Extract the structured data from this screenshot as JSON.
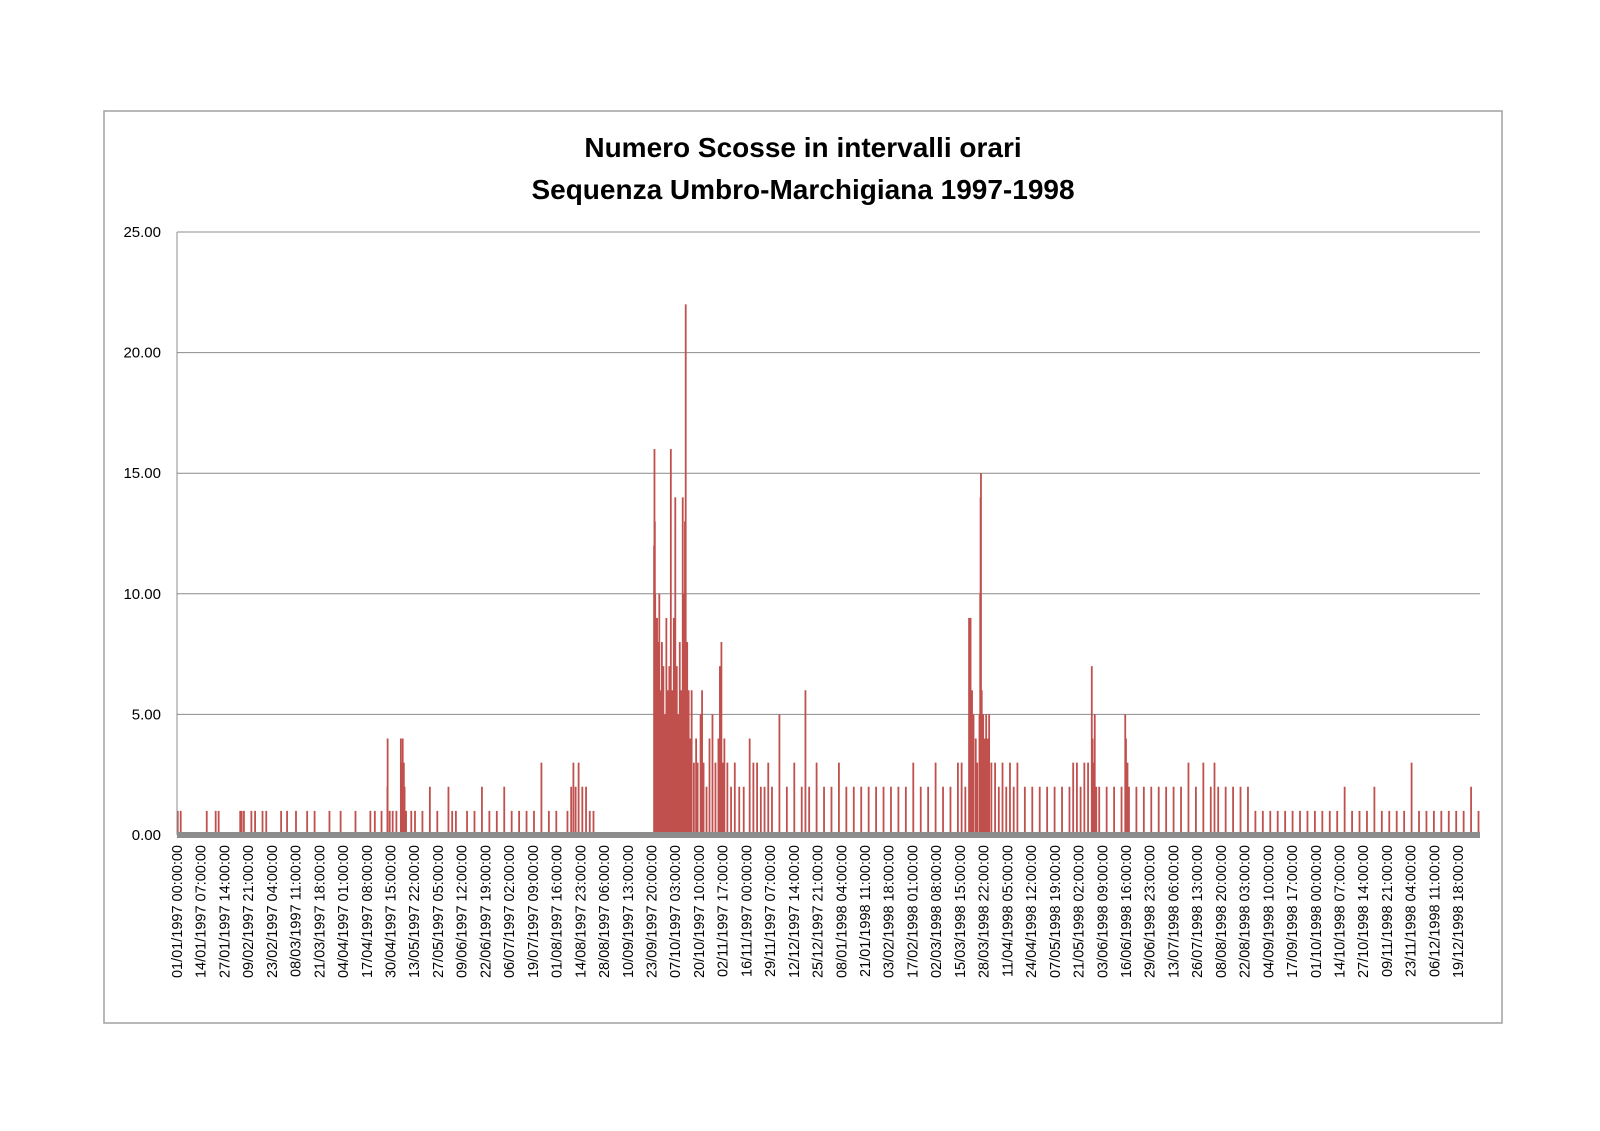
{
  "chart_data": {
    "type": "bar",
    "title": "Numero Scosse in intervalli orari",
    "subtitle": "Sequenza Umbro-Marchigiana 1997-1998",
    "xlabel": "",
    "ylabel": "",
    "ylim": [
      0,
      25
    ],
    "y_ticks": [
      "0.00",
      "5.00",
      "10.00",
      "15.00",
      "20.00",
      "25.00"
    ],
    "x_range": [
      "01/01/1997 00:00:00",
      "31/12/1998 23:00:00"
    ],
    "grid": true,
    "legend": "none",
    "bar_color": "#c0504d",
    "gridline_color": "#8c8c8c",
    "frame_color": "#a0a0a0",
    "x_ticks": [
      "01/01/1997 00:00:00",
      "14/01/1997 07:00:00",
      "27/01/1997 14:00:00",
      "09/02/1997 21:00:00",
      "23/02/1997 04:00:00",
      "08/03/1997 11:00:00",
      "21/03/1997 18:00:00",
      "04/04/1997 01:00:00",
      "17/04/1997 08:00:00",
      "30/04/1997 15:00:00",
      "13/05/1997 22:00:00",
      "27/05/1997 05:00:00",
      "09/06/1997 12:00:00",
      "22/06/1997 19:00:00",
      "06/07/1997 02:00:00",
      "19/07/1997 09:00:00",
      "01/08/1997 16:00:00",
      "14/08/1997 23:00:00",
      "28/08/1997 06:00:00",
      "10/09/1997 13:00:00",
      "23/09/1997 20:00:00",
      "07/10/1997 03:00:00",
      "20/10/1997 10:00:00",
      "02/11/1997 17:00:00",
      "16/11/1997 00:00:00",
      "29/11/1997 07:00:00",
      "12/12/1997 14:00:00",
      "25/12/1997 21:00:00",
      "08/01/1998 04:00:00",
      "21/01/1998 11:00:00",
      "03/02/1998 18:00:00",
      "17/02/1998 01:00:00",
      "02/03/1998 08:00:00",
      "15/03/1998 15:00:00",
      "28/03/1998 22:00:00",
      "11/04/1998 05:00:00",
      "24/04/1998 12:00:00",
      "07/05/1998 19:00:00",
      "21/05/1998 02:00:00",
      "03/06/1998 09:00:00",
      "16/06/1998 16:00:00",
      "29/06/1998 23:00:00",
      "13/07/1998 06:00:00",
      "26/07/1998 13:00:00",
      "08/08/1998 20:00:00",
      "22/08/1998 03:00:00",
      "04/09/1998 10:00:00",
      "17/09/1998 17:00:00",
      "01/10/1998 00:00:00",
      "14/10/1998 07:00:00",
      "27/10/1998 14:00:00",
      "09/11/1998 21:00:00",
      "23/11/1998 04:00:00",
      "06/12/1998 11:00:00",
      "19/12/1998 18:00:00"
    ],
    "x_tick_step_hours": 319,
    "total_hours": 17520,
    "series": [
      {
        "points": [
          {
            "h": 10,
            "v": 1
          },
          {
            "h": 50,
            "v": 1
          },
          {
            "h": 400,
            "v": 1
          },
          {
            "h": 520,
            "v": 1
          },
          {
            "h": 560,
            "v": 1
          },
          {
            "h": 850,
            "v": 1
          },
          {
            "h": 870,
            "v": 1
          },
          {
            "h": 900,
            "v": 1
          },
          {
            "h": 1000,
            "v": 1
          },
          {
            "h": 1050,
            "v": 1
          },
          {
            "h": 1150,
            "v": 1
          },
          {
            "h": 1200,
            "v": 1
          },
          {
            "h": 1400,
            "v": 1
          },
          {
            "h": 1480,
            "v": 1
          },
          {
            "h": 1600,
            "v": 1
          },
          {
            "h": 1750,
            "v": 1
          },
          {
            "h": 1850,
            "v": 1
          },
          {
            "h": 2050,
            "v": 1
          },
          {
            "h": 2200,
            "v": 1
          },
          {
            "h": 2400,
            "v": 1
          },
          {
            "h": 2600,
            "v": 1
          },
          {
            "h": 2660,
            "v": 1
          },
          {
            "h": 2750,
            "v": 1
          },
          {
            "h": 2830,
            "v": 2
          },
          {
            "h": 2832,
            "v": 4
          },
          {
            "h": 2860,
            "v": 1
          },
          {
            "h": 2900,
            "v": 1
          },
          {
            "h": 2950,
            "v": 1
          },
          {
            "h": 3010,
            "v": 4
          },
          {
            "h": 3020,
            "v": 3
          },
          {
            "h": 3035,
            "v": 4
          },
          {
            "h": 3050,
            "v": 3
          },
          {
            "h": 3060,
            "v": 2
          },
          {
            "h": 3080,
            "v": 1
          },
          {
            "h": 3150,
            "v": 1
          },
          {
            "h": 3200,
            "v": 1
          },
          {
            "h": 3300,
            "v": 1
          },
          {
            "h": 3400,
            "v": 2
          },
          {
            "h": 3500,
            "v": 1
          },
          {
            "h": 3650,
            "v": 2
          },
          {
            "h": 3700,
            "v": 1
          },
          {
            "h": 3750,
            "v": 1
          },
          {
            "h": 3900,
            "v": 1
          },
          {
            "h": 4000,
            "v": 1
          },
          {
            "h": 4100,
            "v": 2
          },
          {
            "h": 4200,
            "v": 1
          },
          {
            "h": 4300,
            "v": 1
          },
          {
            "h": 4400,
            "v": 2
          },
          {
            "h": 4500,
            "v": 1
          },
          {
            "h": 4600,
            "v": 1
          },
          {
            "h": 4700,
            "v": 1
          },
          {
            "h": 4800,
            "v": 1
          },
          {
            "h": 4900,
            "v": 3
          },
          {
            "h": 5000,
            "v": 1
          },
          {
            "h": 5100,
            "v": 1
          },
          {
            "h": 5250,
            "v": 1
          },
          {
            "h": 5300,
            "v": 2
          },
          {
            "h": 5330,
            "v": 3
          },
          {
            "h": 5360,
            "v": 2
          },
          {
            "h": 5400,
            "v": 3
          },
          {
            "h": 5450,
            "v": 2
          },
          {
            "h": 5500,
            "v": 2
          },
          {
            "h": 5550,
            "v": 1
          },
          {
            "h": 5600,
            "v": 1
          },
          {
            "h": 6415,
            "v": 12
          },
          {
            "h": 6420,
            "v": 16
          },
          {
            "h": 6425,
            "v": 13
          },
          {
            "h": 6430,
            "v": 10
          },
          {
            "h": 6440,
            "v": 9
          },
          {
            "h": 6455,
            "v": 9
          },
          {
            "h": 6470,
            "v": 8
          },
          {
            "h": 6485,
            "v": 10
          },
          {
            "h": 6500,
            "v": 6
          },
          {
            "h": 6520,
            "v": 8
          },
          {
            "h": 6540,
            "v": 7
          },
          {
            "h": 6560,
            "v": 5
          },
          {
            "h": 6580,
            "v": 9
          },
          {
            "h": 6600,
            "v": 6
          },
          {
            "h": 6620,
            "v": 7
          },
          {
            "h": 6640,
            "v": 16
          },
          {
            "h": 6660,
            "v": 6
          },
          {
            "h": 6680,
            "v": 9
          },
          {
            "h": 6700,
            "v": 14
          },
          {
            "h": 6720,
            "v": 7
          },
          {
            "h": 6740,
            "v": 5
          },
          {
            "h": 6760,
            "v": 8
          },
          {
            "h": 6780,
            "v": 6
          },
          {
            "h": 6800,
            "v": 14
          },
          {
            "h": 6820,
            "v": 10
          },
          {
            "h": 6830,
            "v": 13
          },
          {
            "h": 6840,
            "v": 22
          },
          {
            "h": 6860,
            "v": 8
          },
          {
            "h": 6880,
            "v": 6
          },
          {
            "h": 6900,
            "v": 4
          },
          {
            "h": 6920,
            "v": 6
          },
          {
            "h": 6950,
            "v": 3
          },
          {
            "h": 6980,
            "v": 4
          },
          {
            "h": 7000,
            "v": 3
          },
          {
            "h": 7040,
            "v": 5
          },
          {
            "h": 7060,
            "v": 6
          },
          {
            "h": 7080,
            "v": 3
          },
          {
            "h": 7120,
            "v": 2
          },
          {
            "h": 7160,
            "v": 4
          },
          {
            "h": 7200,
            "v": 5
          },
          {
            "h": 7240,
            "v": 3
          },
          {
            "h": 7280,
            "v": 4
          },
          {
            "h": 7300,
            "v": 7
          },
          {
            "h": 7320,
            "v": 8
          },
          {
            "h": 7340,
            "v": 3
          },
          {
            "h": 7360,
            "v": 4
          },
          {
            "h": 7400,
            "v": 3
          },
          {
            "h": 7450,
            "v": 2
          },
          {
            "h": 7500,
            "v": 3
          },
          {
            "h": 7560,
            "v": 2
          },
          {
            "h": 7620,
            "v": 2
          },
          {
            "h": 7700,
            "v": 4
          },
          {
            "h": 7750,
            "v": 3
          },
          {
            "h": 7800,
            "v": 3
          },
          {
            "h": 7850,
            "v": 2
          },
          {
            "h": 7900,
            "v": 2
          },
          {
            "h": 7950,
            "v": 3
          },
          {
            "h": 8000,
            "v": 2
          },
          {
            "h": 8100,
            "v": 5
          },
          {
            "h": 8200,
            "v": 2
          },
          {
            "h": 8300,
            "v": 3
          },
          {
            "h": 8400,
            "v": 2
          },
          {
            "h": 8450,
            "v": 6
          },
          {
            "h": 8500,
            "v": 2
          },
          {
            "h": 8600,
            "v": 3
          },
          {
            "h": 8700,
            "v": 2
          },
          {
            "h": 8800,
            "v": 2
          },
          {
            "h": 8900,
            "v": 3
          },
          {
            "h": 9000,
            "v": 2
          },
          {
            "h": 9100,
            "v": 2
          },
          {
            "h": 9200,
            "v": 2
          },
          {
            "h": 9300,
            "v": 2
          },
          {
            "h": 9400,
            "v": 2
          },
          {
            "h": 9500,
            "v": 2
          },
          {
            "h": 9600,
            "v": 2
          },
          {
            "h": 9700,
            "v": 2
          },
          {
            "h": 9800,
            "v": 2
          },
          {
            "h": 9900,
            "v": 3
          },
          {
            "h": 10000,
            "v": 2
          },
          {
            "h": 10100,
            "v": 2
          },
          {
            "h": 10200,
            "v": 3
          },
          {
            "h": 10300,
            "v": 2
          },
          {
            "h": 10400,
            "v": 2
          },
          {
            "h": 10500,
            "v": 3
          },
          {
            "h": 10550,
            "v": 3
          },
          {
            "h": 10600,
            "v": 2
          },
          {
            "h": 10650,
            "v": 9
          },
          {
            "h": 10670,
            "v": 9
          },
          {
            "h": 10690,
            "v": 6
          },
          {
            "h": 10710,
            "v": 5
          },
          {
            "h": 10740,
            "v": 4
          },
          {
            "h": 10760,
            "v": 3
          },
          {
            "h": 10790,
            "v": 5
          },
          {
            "h": 10800,
            "v": 10
          },
          {
            "h": 10805,
            "v": 14
          },
          {
            "h": 10810,
            "v": 15
          },
          {
            "h": 10820,
            "v": 6
          },
          {
            "h": 10840,
            "v": 5
          },
          {
            "h": 10860,
            "v": 4
          },
          {
            "h": 10880,
            "v": 5
          },
          {
            "h": 10900,
            "v": 4
          },
          {
            "h": 10920,
            "v": 5
          },
          {
            "h": 10950,
            "v": 3
          },
          {
            "h": 11000,
            "v": 3
          },
          {
            "h": 11050,
            "v": 2
          },
          {
            "h": 11100,
            "v": 3
          },
          {
            "h": 11150,
            "v": 2
          },
          {
            "h": 11200,
            "v": 3
          },
          {
            "h": 11250,
            "v": 2
          },
          {
            "h": 11300,
            "v": 3
          },
          {
            "h": 11400,
            "v": 2
          },
          {
            "h": 11500,
            "v": 2
          },
          {
            "h": 11600,
            "v": 2
          },
          {
            "h": 11700,
            "v": 2
          },
          {
            "h": 11800,
            "v": 2
          },
          {
            "h": 11900,
            "v": 2
          },
          {
            "h": 12000,
            "v": 2
          },
          {
            "h": 12050,
            "v": 3
          },
          {
            "h": 12100,
            "v": 3
          },
          {
            "h": 12150,
            "v": 2
          },
          {
            "h": 12200,
            "v": 3
          },
          {
            "h": 12250,
            "v": 3
          },
          {
            "h": 12300,
            "v": 7
          },
          {
            "h": 12310,
            "v": 4
          },
          {
            "h": 12320,
            "v": 3
          },
          {
            "h": 12340,
            "v": 5
          },
          {
            "h": 12360,
            "v": 2
          },
          {
            "h": 12400,
            "v": 2
          },
          {
            "h": 12500,
            "v": 2
          },
          {
            "h": 12600,
            "v": 2
          },
          {
            "h": 12700,
            "v": 2
          },
          {
            "h": 12750,
            "v": 5
          },
          {
            "h": 12760,
            "v": 4
          },
          {
            "h": 12780,
            "v": 3
          },
          {
            "h": 12800,
            "v": 2
          },
          {
            "h": 12900,
            "v": 2
          },
          {
            "h": 13000,
            "v": 2
          },
          {
            "h": 13100,
            "v": 2
          },
          {
            "h": 13200,
            "v": 2
          },
          {
            "h": 13300,
            "v": 2
          },
          {
            "h": 13400,
            "v": 2
          },
          {
            "h": 13500,
            "v": 2
          },
          {
            "h": 13600,
            "v": 3
          },
          {
            "h": 13700,
            "v": 2
          },
          {
            "h": 13800,
            "v": 3
          },
          {
            "h": 13900,
            "v": 2
          },
          {
            "h": 13950,
            "v": 3
          },
          {
            "h": 14000,
            "v": 2
          },
          {
            "h": 14100,
            "v": 2
          },
          {
            "h": 14200,
            "v": 2
          },
          {
            "h": 14300,
            "v": 2
          },
          {
            "h": 14400,
            "v": 2
          },
          {
            "h": 14500,
            "v": 1
          },
          {
            "h": 14600,
            "v": 1
          },
          {
            "h": 14700,
            "v": 1
          },
          {
            "h": 14800,
            "v": 1
          },
          {
            "h": 14900,
            "v": 1
          },
          {
            "h": 15000,
            "v": 1
          },
          {
            "h": 15100,
            "v": 1
          },
          {
            "h": 15200,
            "v": 1
          },
          {
            "h": 15300,
            "v": 1
          },
          {
            "h": 15400,
            "v": 1
          },
          {
            "h": 15500,
            "v": 1
          },
          {
            "h": 15600,
            "v": 1
          },
          {
            "h": 15700,
            "v": 2
          },
          {
            "h": 15800,
            "v": 1
          },
          {
            "h": 15900,
            "v": 1
          },
          {
            "h": 16000,
            "v": 1
          },
          {
            "h": 16100,
            "v": 2
          },
          {
            "h": 16200,
            "v": 1
          },
          {
            "h": 16300,
            "v": 1
          },
          {
            "h": 16400,
            "v": 1
          },
          {
            "h": 16500,
            "v": 1
          },
          {
            "h": 16600,
            "v": 3
          },
          {
            "h": 16700,
            "v": 1
          },
          {
            "h": 16800,
            "v": 1
          },
          {
            "h": 16900,
            "v": 1
          },
          {
            "h": 17000,
            "v": 1
          },
          {
            "h": 17100,
            "v": 1
          },
          {
            "h": 17200,
            "v": 1
          },
          {
            "h": 17300,
            "v": 1
          },
          {
            "h": 17400,
            "v": 2
          },
          {
            "h": 17500,
            "v": 1
          }
        ]
      }
    ]
  }
}
